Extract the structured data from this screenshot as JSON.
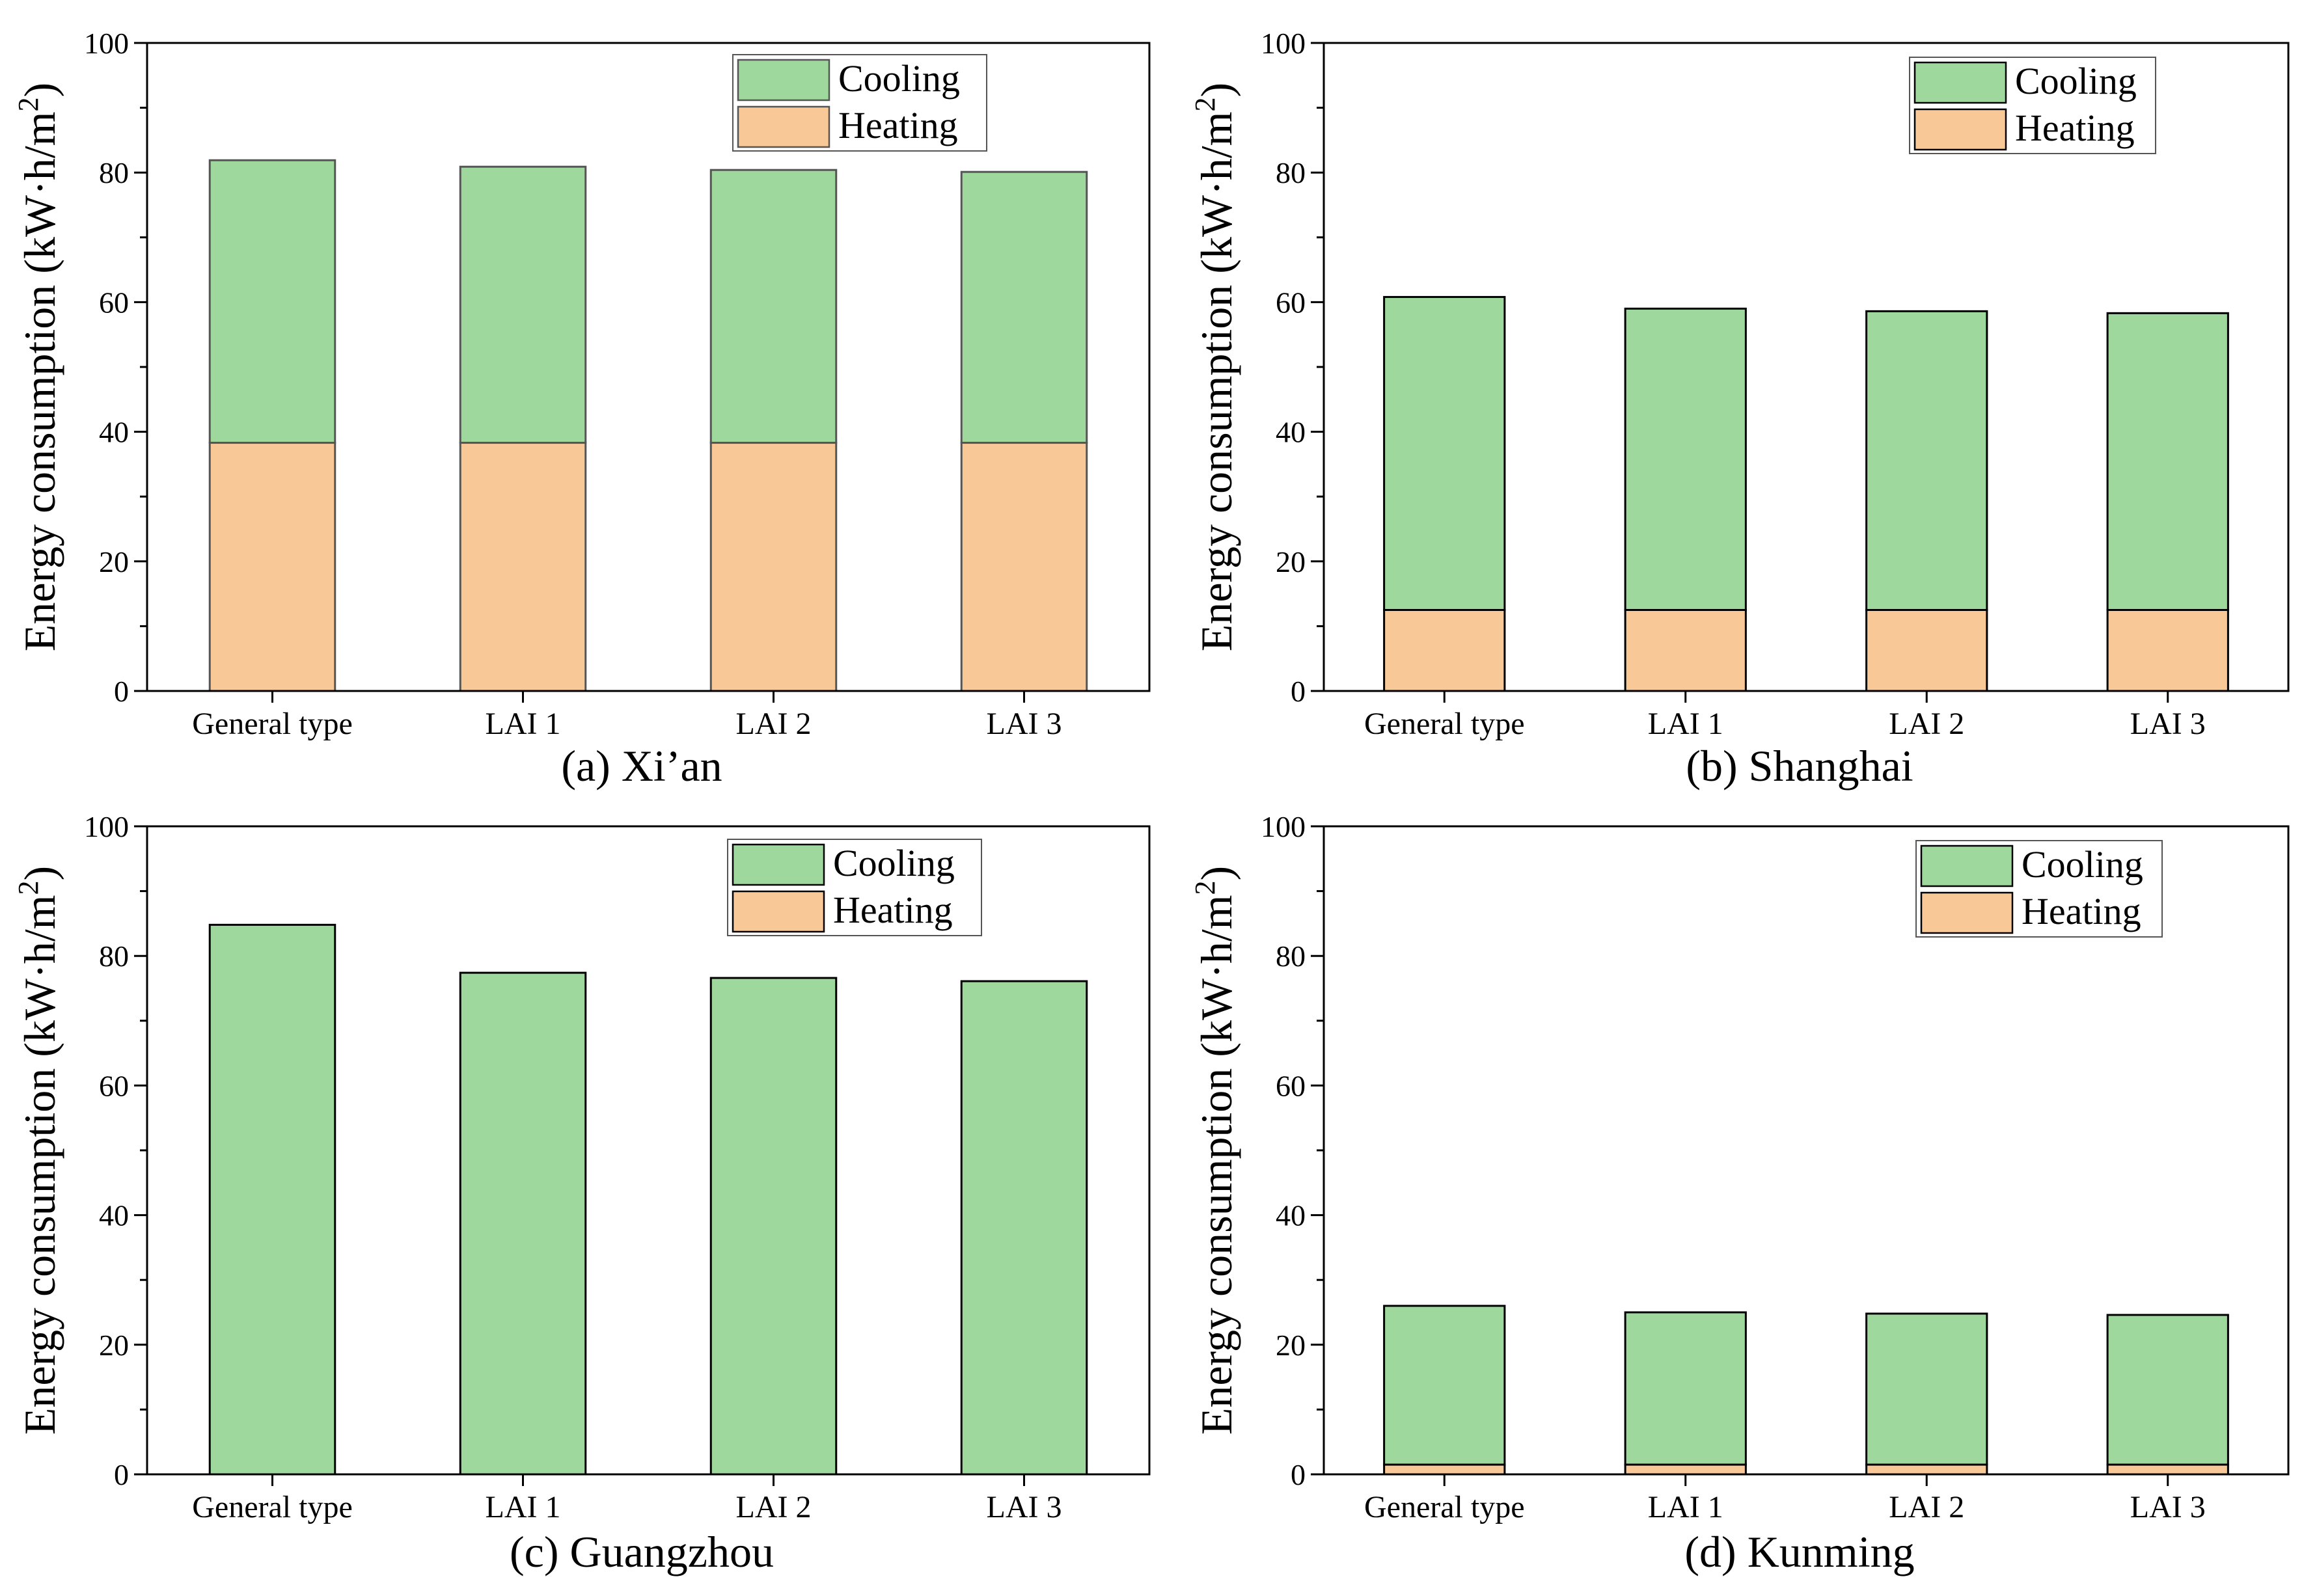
{
  "colors": {
    "cooling": "#9fd89d",
    "heating": "#f9c897",
    "axis": "#000000",
    "background": "#ffffff"
  },
  "chart_data": [
    {
      "type": "bar",
      "stacked": true,
      "title": "(a) Xi’an",
      "xlabel": "",
      "ylabel_main": "Energy consumption (kW·h/m",
      "ylabel_sup": "2",
      "ylabel_close": ")",
      "ylim": [
        0,
        100
      ],
      "yticks": [
        "0",
        "20",
        "40",
        "60",
        "80",
        "100"
      ],
      "categories": [
        "General type",
        "LAI 1",
        "LAI 2",
        "LAI 3"
      ],
      "legend": {
        "position": "top-right",
        "entries": [
          "Cooling",
          "Heating"
        ]
      },
      "bar_outline": "#555555",
      "series": [
        {
          "name": "Heating",
          "values": [
            38.3,
            38.3,
            38.3,
            38.3
          ]
        },
        {
          "name": "Cooling",
          "values": [
            43.6,
            42.6,
            42.1,
            41.8
          ]
        }
      ]
    },
    {
      "type": "bar",
      "stacked": true,
      "title": "(b) Shanghai",
      "xlabel": "",
      "ylabel_main": "Energy consumption (kW·h/m",
      "ylabel_sup": "2",
      "ylabel_close": ")",
      "ylim": [
        0,
        100
      ],
      "yticks": [
        "0",
        "20",
        "40",
        "60",
        "80",
        "100"
      ],
      "categories": [
        "General type",
        "LAI 1",
        "LAI 2",
        "LAI 3"
      ],
      "legend": {
        "position": "top-right",
        "entries": [
          "Cooling",
          "Heating"
        ]
      },
      "bar_outline": "#000000",
      "series": [
        {
          "name": "Heating",
          "values": [
            12.5,
            12.5,
            12.5,
            12.5
          ]
        },
        {
          "name": "Cooling",
          "values": [
            48.3,
            46.5,
            46.1,
            45.8
          ]
        }
      ]
    },
    {
      "type": "bar",
      "stacked": true,
      "title": "(c) Guangzhou",
      "xlabel": "",
      "ylabel_main": "Energy consumption (kW·h/m",
      "ylabel_sup": "2",
      "ylabel_close": ")",
      "ylim": [
        0,
        100
      ],
      "yticks": [
        "0",
        "20",
        "40",
        "60",
        "80",
        "100"
      ],
      "categories": [
        "General type",
        "LAI 1",
        "LAI 2",
        "LAI 3"
      ],
      "legend": {
        "position": "top-right",
        "entries": [
          "Cooling",
          "Heating"
        ]
      },
      "bar_outline": "#000000",
      "series": [
        {
          "name": "Heating",
          "values": [
            0,
            0,
            0,
            0
          ]
        },
        {
          "name": "Cooling",
          "values": [
            84.8,
            77.4,
            76.6,
            76.1
          ]
        }
      ]
    },
    {
      "type": "bar",
      "stacked": true,
      "title": "(d) Kunming",
      "xlabel": "",
      "ylabel_main": "Energy consumption (kW·h/m",
      "ylabel_sup": "2",
      "ylabel_close": ")",
      "ylim": [
        0,
        100
      ],
      "yticks": [
        "0",
        "20",
        "40",
        "60",
        "80",
        "100"
      ],
      "categories": [
        "General type",
        "LAI 1",
        "LAI 2",
        "LAI 3"
      ],
      "legend": {
        "position": "top-right",
        "entries": [
          "Cooling",
          "Heating"
        ]
      },
      "bar_outline": "#000000",
      "series": [
        {
          "name": "Heating",
          "values": [
            1.5,
            1.5,
            1.5,
            1.5
          ]
        },
        {
          "name": "Cooling",
          "values": [
            24.5,
            23.5,
            23.3,
            23.1
          ]
        }
      ]
    }
  ]
}
